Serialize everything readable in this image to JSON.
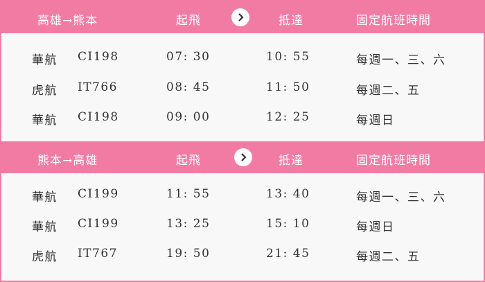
{
  "sections": [
    {
      "header": {
        "route": "高雄→熊本",
        "depart": "起飛",
        "arrive": "抵達",
        "schedule": "固定航班時間"
      },
      "rows": [
        [
          "華航",
          "CI198",
          "07: 30",
          "10: 55",
          "每週一、三、六"
        ],
        [
          "虎航",
          "IT766",
          "08: 45",
          "11: 50",
          "每週二、五"
        ],
        [
          "華航",
          "CI198",
          "09: 00",
          "12: 25",
          "每週日"
        ]
      ]
    },
    {
      "header": {
        "route": "熊本→高雄",
        "depart": "起飛",
        "arrive": "抵達",
        "schedule": "固定航班時間"
      },
      "rows": [
        [
          "華航",
          "CI199",
          "11: 55",
          "13: 40",
          "每週一、三、六"
        ],
        [
          "華航",
          "CI199",
          "13: 25",
          "15: 10",
          "每週日"
        ],
        [
          "虎航",
          "IT767",
          "19: 50",
          "21: 45",
          "每週二、五"
        ]
      ]
    }
  ]
}
